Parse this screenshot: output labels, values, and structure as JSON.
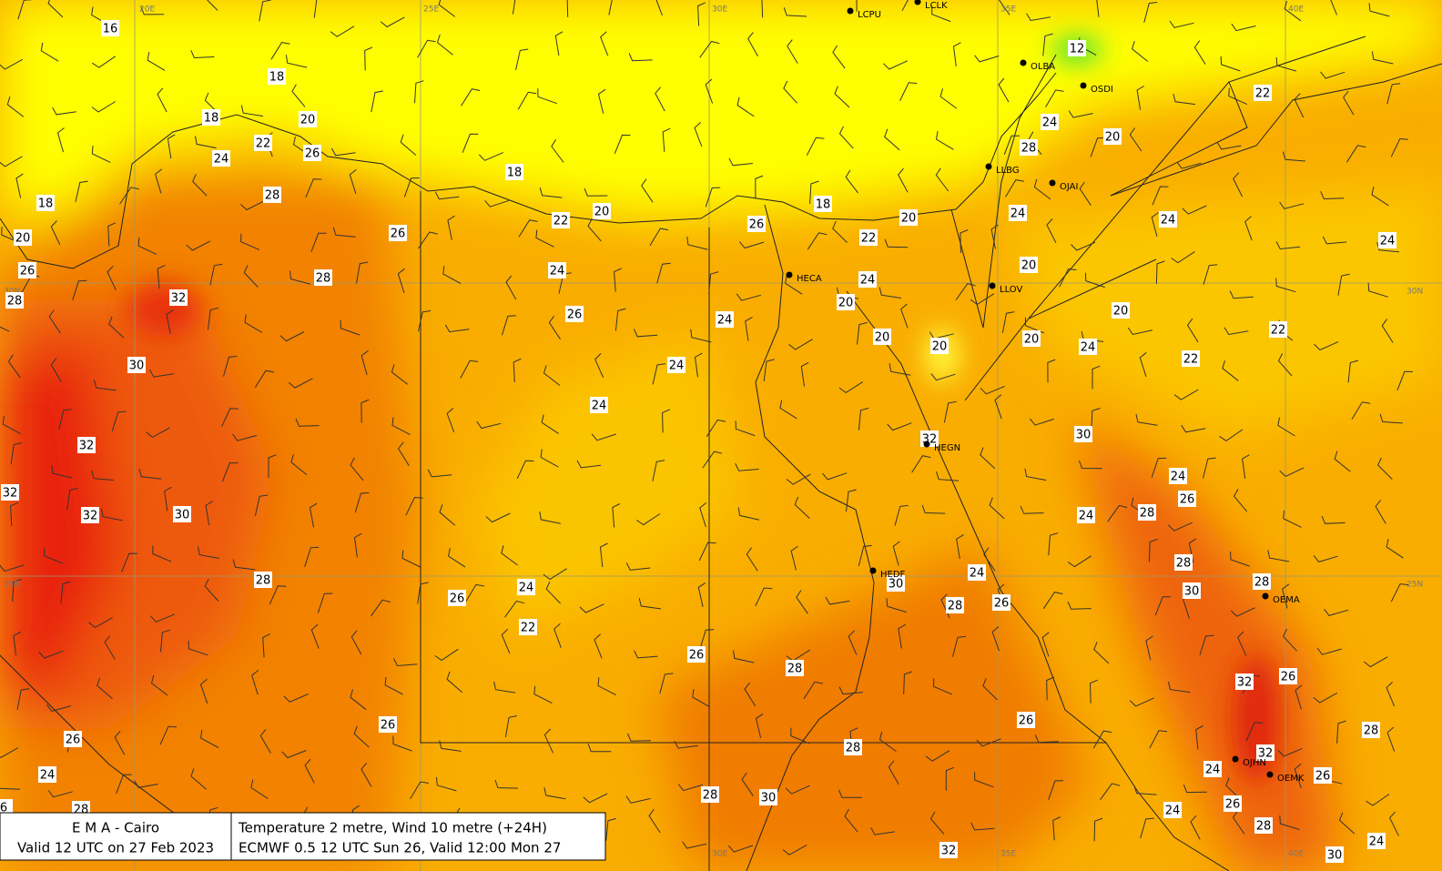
{
  "footer": {
    "left": [
      "E M A  -  Cairo",
      "Valid 12 UTC on 27 Feb 2023"
    ],
    "right": [
      "Temperature  2 metre, Wind  10 metre (+24H)",
      "ECMWF 0.5 12 UTC Sun 26, Valid 12:00 Mon 27"
    ]
  },
  "grid_labels": {
    "longitudes": [
      "20E",
      "25E",
      "30E",
      "35E",
      "40E"
    ],
    "latitudes": [
      "30N",
      "25N"
    ]
  },
  "stations": [
    "LCPU",
    "LCLK",
    "OLBA",
    "OSDI",
    "LLBG",
    "OJAI",
    "HECA",
    "LLOV",
    "HEGN",
    "HEDF",
    "OEMA",
    "OJHN",
    "OEMK"
  ],
  "temperature_labels": [
    "16",
    "18",
    "18",
    "20",
    "22",
    "26",
    "24",
    "18",
    "28",
    "18",
    "22",
    "20",
    "26",
    "20",
    "26",
    "24",
    "28",
    "28",
    "32",
    "26",
    "24",
    "30",
    "24",
    "24",
    "32",
    "32",
    "32",
    "30",
    "28",
    "26",
    "24",
    "22",
    "26",
    "28",
    "26",
    "26",
    "24",
    "28",
    "28",
    "28",
    "30",
    "32",
    "26",
    "18",
    "20",
    "22",
    "24",
    "20",
    "20",
    "20",
    "32",
    "12",
    "22",
    "24",
    "20",
    "28",
    "24",
    "24",
    "24",
    "20",
    "20",
    "20",
    "24",
    "22",
    "22",
    "30",
    "24",
    "26",
    "24",
    "28",
    "28",
    "24",
    "30",
    "28",
    "26",
    "30",
    "28",
    "32",
    "26",
    "28",
    "26",
    "32",
    "24",
    "26",
    "26",
    "24",
    "28",
    "24",
    "30",
    "6"
  ]
}
